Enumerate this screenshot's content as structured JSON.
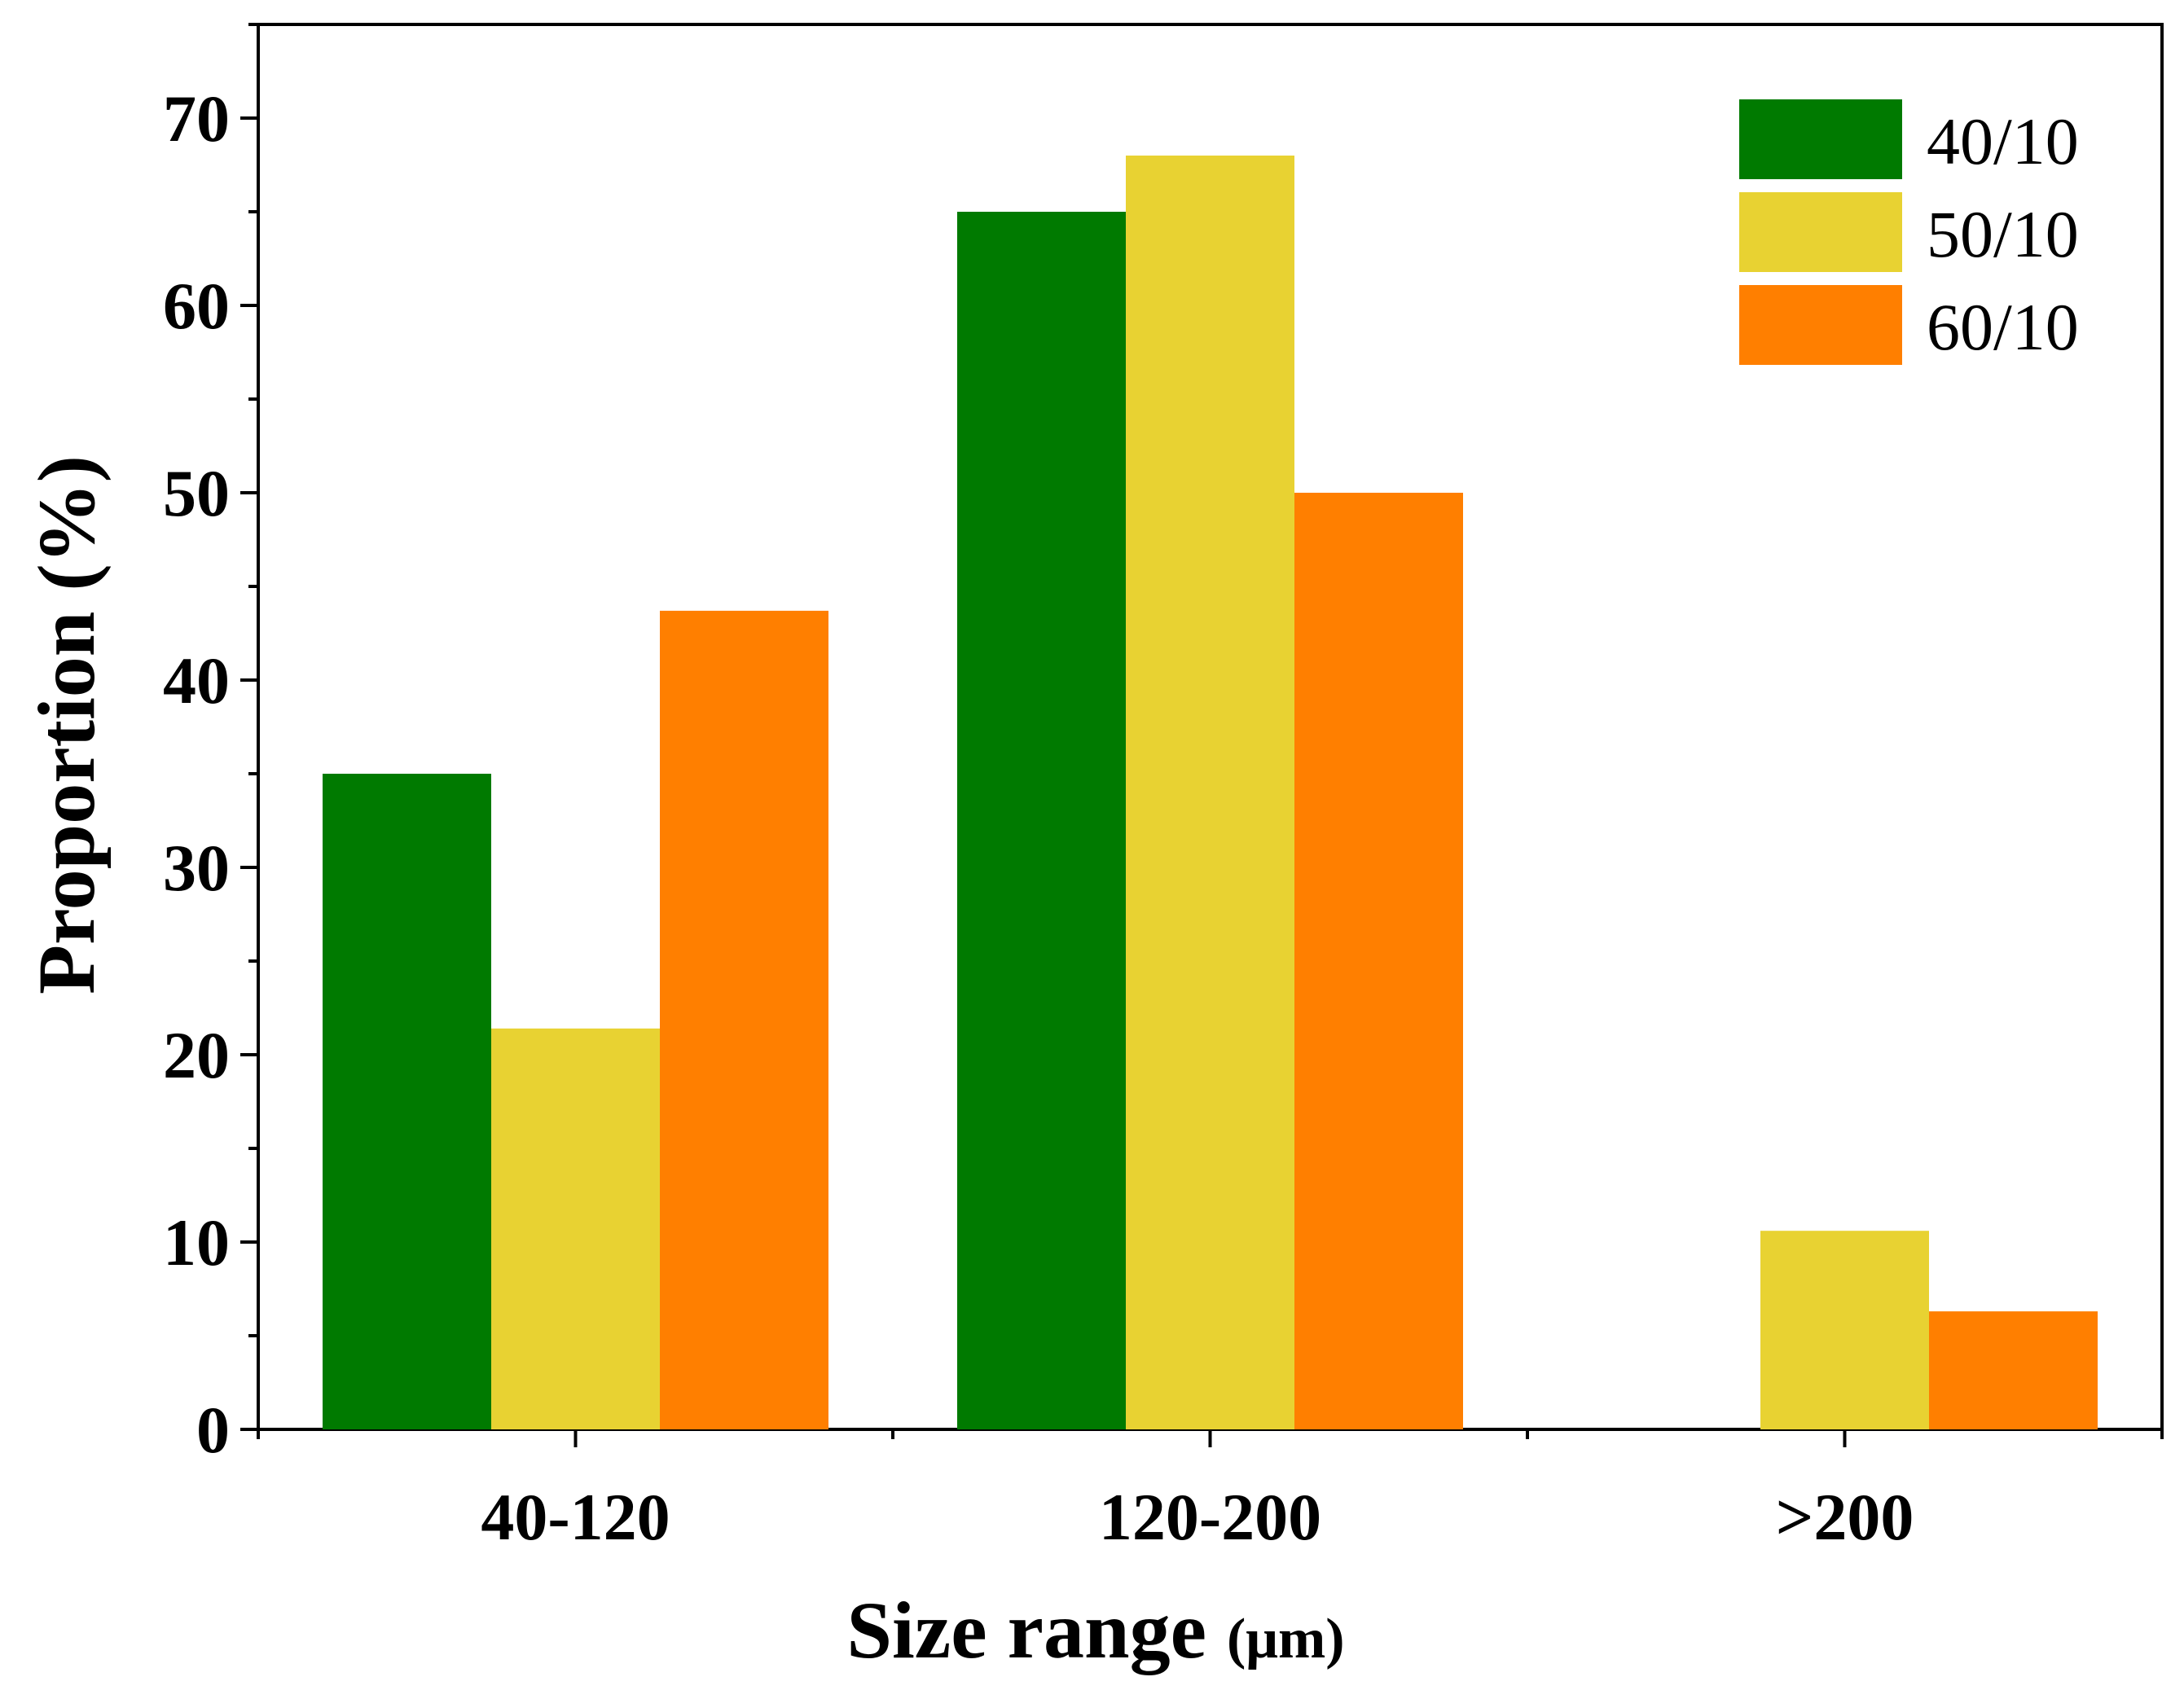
{
  "chart_data": {
    "type": "bar",
    "title": "",
    "xlabel": "Size range",
    "xlabel_unit": "(μm)",
    "ylabel": "Proportion (%)",
    "ylim": [
      0,
      75
    ],
    "yticks": [
      0,
      10,
      20,
      30,
      40,
      50,
      60,
      70
    ],
    "categories": [
      "40-120",
      "120-200",
      ">200"
    ],
    "series": [
      {
        "name": "40/10",
        "color": "#007a00",
        "values": [
          35,
          65,
          0
        ]
      },
      {
        "name": "50/10",
        "color": "#e8d232",
        "values": [
          21.4,
          68,
          10.6
        ]
      },
      {
        "name": "60/10",
        "color": "#ff7f00",
        "values": [
          43.7,
          50,
          6.3
        ]
      }
    ],
    "legend_position": "top-right",
    "grid": false
  }
}
